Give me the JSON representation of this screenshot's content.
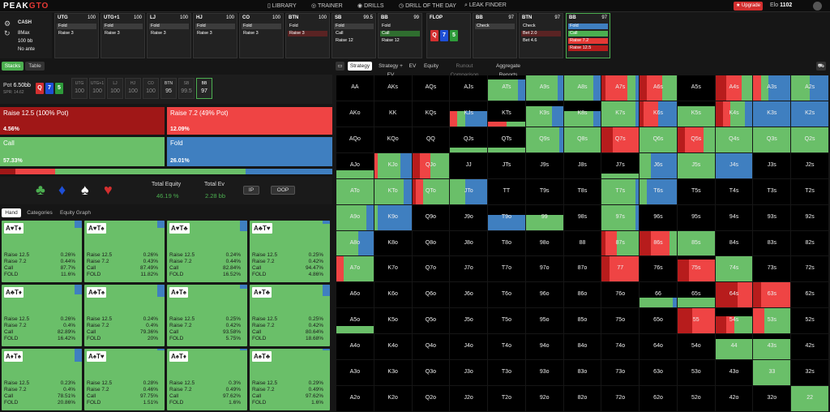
{
  "brand": {
    "logo_a": "PEAK",
    "logo_b": "GTO"
  },
  "nav": [
    "LIBRARY",
    "TRAINER",
    "DRILLS",
    "DRILL OF THE DAY",
    "LEAK FINDER"
  ],
  "upgrade": "Upgrade",
  "elo": {
    "label": "Elo",
    "value": "1102"
  },
  "game": {
    "type": "CASH",
    "format": "8Max",
    "stack": "100 bb",
    "ante": "No ante"
  },
  "positions": [
    {
      "name": "UTG",
      "value": "100",
      "rows": [
        {
          "t": "Fold",
          "c": "#3c3c3c"
        },
        {
          "t": "Raise 3",
          "c": ""
        }
      ]
    },
    {
      "name": "UTG+1",
      "value": "100",
      "rows": [
        {
          "t": "Fold",
          "c": "#3c3c3c"
        },
        {
          "t": "Raise 3",
          "c": ""
        }
      ]
    },
    {
      "name": "LJ",
      "value": "100",
      "rows": [
        {
          "t": "Fold",
          "c": "#3c3c3c"
        },
        {
          "t": "Raise 3",
          "c": ""
        }
      ]
    },
    {
      "name": "HJ",
      "value": "100",
      "rows": [
        {
          "t": "Fold",
          "c": "#3c3c3c"
        },
        {
          "t": "Raise 3",
          "c": ""
        }
      ]
    },
    {
      "name": "CO",
      "value": "100",
      "rows": [
        {
          "t": "Fold",
          "c": "#3c3c3c"
        },
        {
          "t": "Raise 3",
          "c": ""
        }
      ]
    },
    {
      "name": "BTN",
      "value": "100",
      "rows": [
        {
          "t": "Fold",
          "c": ""
        },
        {
          "t": "Raise 3",
          "c": "#5a2323"
        }
      ]
    },
    {
      "name": "SB",
      "value": "99.5",
      "rows": [
        {
          "t": "Fold",
          "c": "#3c3c3c"
        },
        {
          "t": "Call",
          "c": ""
        },
        {
          "t": "Raise 12",
          "c": ""
        }
      ]
    },
    {
      "name": "BB",
      "value": "99",
      "rows": [
        {
          "t": "Fold",
          "c": ""
        },
        {
          "t": "Call",
          "c": "#2f6e2f"
        },
        {
          "t": "Raise 12",
          "c": ""
        }
      ]
    },
    {
      "name": "BB",
      "value": "97",
      "rows": [
        {
          "t": "Check",
          "c": "#3c3c3c"
        }
      ]
    },
    {
      "name": "BTN",
      "value": "97",
      "rows": [
        {
          "t": "Check",
          "c": ""
        },
        {
          "t": "Bet 2.0",
          "c": "#5a2323"
        },
        {
          "t": "Bet 4.6",
          "c": ""
        }
      ]
    },
    {
      "name": "BB",
      "value": "97",
      "rows": [
        {
          "t": "Fold",
          "c": "#3f7fc0"
        },
        {
          "t": "Call",
          "c": "#4caf50"
        },
        {
          "t": "Raise 7.2",
          "c": "#e53935"
        },
        {
          "t": "Raise 12.5",
          "c": "#b71c1c"
        }
      ]
    }
  ],
  "flop": {
    "label": "FLOP",
    "cards": [
      {
        "r": "Q",
        "s": "♥",
        "c": "#d32f2f"
      },
      {
        "r": "7",
        "s": "♦",
        "c": "#1e4fd6"
      },
      {
        "r": "5",
        "s": "♣",
        "c": "#2e9b3a"
      }
    ]
  },
  "left_tabs": {
    "stacks": "Stacks",
    "table": "Table"
  },
  "pot": {
    "label": "Pot",
    "value": "6.50bb",
    "spr": "SPR: 14.62"
  },
  "board_cards": [
    {
      "r": "Q",
      "c": "#d32f2f"
    },
    {
      "r": "7",
      "c": "#1e4fd6"
    },
    {
      "r": "5",
      "c": "#2e9b3a"
    }
  ],
  "seats": [
    {
      "n": "UTG",
      "v": "100"
    },
    {
      "n": "UTG+1",
      "v": "100"
    },
    {
      "n": "LJ",
      "v": "100"
    },
    {
      "n": "HJ",
      "v": "100"
    },
    {
      "n": "CO",
      "v": "100"
    },
    {
      "n": "BTN",
      "v": "95"
    },
    {
      "n": "SB",
      "v": "99.5"
    },
    {
      "n": "BB",
      "v": "97"
    }
  ],
  "actions": [
    {
      "label": "Raise 12.5 (100% Pot)",
      "pct": "4.56%",
      "color": "#a01717"
    },
    {
      "label": "Raise 7.2 (49% Pot)",
      "pct": "12.09%",
      "color": "#ef4444"
    },
    {
      "label": "Call",
      "pct": "57.33%",
      "color": "#6abf69"
    },
    {
      "label": "Fold",
      "pct": "26.01%",
      "color": "#3f7fc0"
    }
  ],
  "progress": [
    {
      "c": "#a01717",
      "f": 0.0456
    },
    {
      "c": "#ef4444",
      "f": 0.1209
    },
    {
      "c": "#6abf69",
      "f": 0.5733
    },
    {
      "c": "#3f7fc0",
      "f": 0.2601
    }
  ],
  "equity": {
    "label": "Total Equity",
    "value": "46.19 %",
    "ev_label": "Total Ev",
    "ev_value": "2.28 bb",
    "ip": "IP",
    "oop": "OOP"
  },
  "suits": [
    {
      "s": "♣",
      "c": "#4caf50"
    },
    {
      "s": "♦",
      "c": "#1e4fd6"
    },
    {
      "s": "♠",
      "c": "#ffffff"
    },
    {
      "s": "♥",
      "c": "#d32f2f"
    }
  ],
  "subtabs": [
    "Hand",
    "Categories",
    "Equity Graph"
  ],
  "hand_cards": [
    {
      "l": "A♥T♦",
      "v": [
        "0.26%",
        "0.44%",
        "87.7%",
        "11.6%"
      ],
      "b": 0.12
    },
    {
      "l": "A♥T♠",
      "v": [
        "0.26%",
        "0.43%",
        "87.49%",
        "11.82%"
      ],
      "b": 0.12
    },
    {
      "l": "A♥T♣",
      "v": [
        "0.24%",
        "0.44%",
        "82.84%",
        "16.52%"
      ],
      "b": 0.17
    },
    {
      "l": "A♣T♥",
      "v": [
        "0.25%",
        "0.42%",
        "94.47%",
        "4.86%"
      ],
      "b": 0.05
    },
    {
      "l": "A♣T♦",
      "v": [
        "0.26%",
        "0.4%",
        "82.89%",
        "16.42%"
      ],
      "b": 0.16
    },
    {
      "l": "A♣T♠",
      "v": [
        "0.24%",
        "0.4%",
        "79.36%",
        "20%"
      ],
      "b": 0.2
    },
    {
      "l": "A♦T♠",
      "v": [
        "0.25%",
        "0.42%",
        "93.58%",
        "5.75%"
      ],
      "b": 0.06
    },
    {
      "l": "A♦T♣",
      "v": [
        "0.25%",
        "0.42%",
        "80.64%",
        "18.68%"
      ],
      "b": 0.19
    },
    {
      "l": "A♦T♠",
      "v": [
        "0.23%",
        "0.4%",
        "78.51%",
        "20.86%"
      ],
      "b": 0.21
    },
    {
      "l": "A♠T♥",
      "v": [
        "0.28%",
        "0.46%",
        "97.75%",
        "1.51%"
      ],
      "b": 0.02
    },
    {
      "l": "A♠T♦",
      "v": [
        "0.3%",
        "0.49%",
        "97.62%",
        "1.6%"
      ],
      "b": 0.02
    },
    {
      "l": "A♠T♣",
      "v": [
        "0.29%",
        "0.49%",
        "97.62%",
        "1.6%"
      ],
      "b": 0.02
    }
  ],
  "hand_row_labels": [
    "Raise 12.5",
    "Raise 7.2",
    "Call",
    "FOLD"
  ],
  "right_tabs": [
    "Strategy",
    "Strategy + EV",
    "EV",
    "Equity",
    "Runout Comparison",
    "Aggregate Reports"
  ],
  "matrix_ranks": [
    "A",
    "K",
    "Q",
    "J",
    "T",
    "9",
    "8",
    "7",
    "6",
    "5",
    "4",
    "3",
    "2"
  ],
  "colors": {
    "r12": "#b71c1c",
    "r7": "#ef4444",
    "call": "#6abf69",
    "fold": "#3f7fc0"
  }
}
